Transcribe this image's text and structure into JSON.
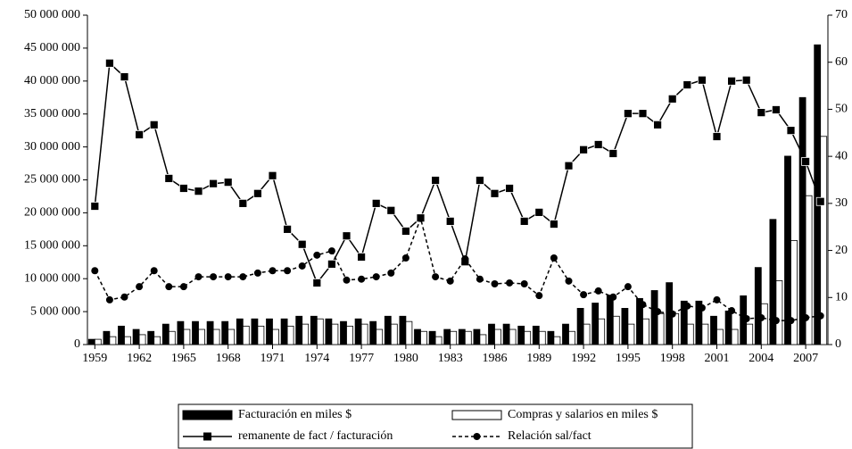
{
  "chart_data": {
    "type": "bar",
    "categories": [
      "1959",
      null,
      null,
      "1962",
      null,
      null,
      "1965",
      null,
      null,
      "1968",
      null,
      null,
      "1971",
      null,
      null,
      "1974",
      null,
      null,
      "1977",
      null,
      null,
      "1980",
      null,
      null,
      "1983",
      null,
      null,
      "1986",
      null,
      null,
      "1989",
      null,
      null,
      "1992",
      null,
      null,
      "1995",
      null,
      null,
      "1998",
      null,
      null,
      "2001",
      null,
      null,
      "2004",
      null,
      null,
      "2007",
      null
    ],
    "series": [
      {
        "name": "Facturación en miles $",
        "type": "bar",
        "color": "#000000",
        "values": [
          800000,
          2000000,
          2800000,
          2300000,
          2000000,
          3100000,
          3500000,
          3500000,
          3500000,
          3500000,
          3900000,
          3900000,
          3900000,
          3900000,
          4300000,
          4300000,
          3900000,
          3500000,
          3900000,
          3500000,
          4300000,
          4300000,
          2300000,
          2000000,
          2300000,
          2300000,
          2300000,
          3100000,
          3100000,
          2800000,
          2800000,
          2000000,
          3100000,
          5500000,
          6300000,
          7500000,
          5500000,
          7000000,
          8200000,
          9400000,
          6600000,
          6600000,
          4300000,
          5100000,
          7400000,
          11700000,
          19000000,
          28600000,
          37500000,
          45500000
        ]
      },
      {
        "name": "Compras y salarios en miles $",
        "type": "bar",
        "color": "#ffffff",
        "values": [
          800000,
          1200000,
          1200000,
          1500000,
          1200000,
          2000000,
          2300000,
          2300000,
          2300000,
          2300000,
          2800000,
          2800000,
          2300000,
          2800000,
          3100000,
          3900000,
          3100000,
          2800000,
          3100000,
          2300000,
          3100000,
          3500000,
          2000000,
          1200000,
          2000000,
          2000000,
          1500000,
          2300000,
          2300000,
          2000000,
          2000000,
          1200000,
          2000000,
          3100000,
          3900000,
          4300000,
          3100000,
          3900000,
          4700000,
          4700000,
          3100000,
          3100000,
          2300000,
          2300000,
          3100000,
          6200000,
          9700000,
          15800000,
          22600000,
          31600000
        ]
      },
      {
        "name": "remanente de fact / facturación",
        "type": "line",
        "axis": "y2",
        "color": "#000000",
        "marker": "square",
        "dash": false,
        "values": [
          29.4,
          59.8,
          56.9,
          44.6,
          46.7,
          35.3,
          33.2,
          32.6,
          34.2,
          34.5,
          30.0,
          32.1,
          35.9,
          24.5,
          21.3,
          13.1,
          17.1,
          23.1,
          18.6,
          30.0,
          28.5,
          24.1,
          26.9,
          34.9,
          26.2,
          17.6,
          34.9,
          32.1,
          33.2,
          26.2,
          28.1,
          25.6,
          38.0,
          41.4,
          42.5,
          40.6,
          49.1,
          49.1,
          46.7,
          52.2,
          55.2,
          56.2,
          44.2,
          56.0,
          56.2,
          49.3,
          49.9,
          45.5,
          38.9,
          30.4
        ]
      },
      {
        "name": "Relación sal/fact",
        "type": "line",
        "axis": "y2",
        "color": "#000000",
        "marker": "circle",
        "dash": true,
        "values": [
          15.7,
          9.5,
          10.1,
          12.3,
          15.7,
          12.3,
          12.3,
          14.4,
          14.4,
          14.4,
          14.4,
          15.2,
          15.7,
          15.7,
          16.7,
          19.0,
          19.9,
          13.7,
          13.9,
          14.4,
          15.2,
          18.4,
          26.8,
          14.4,
          13.5,
          18.2,
          13.9,
          12.9,
          13.1,
          12.9,
          10.4,
          18.4,
          13.5,
          10.6,
          11.4,
          10.1,
          12.3,
          8.5,
          7.0,
          6.5,
          8.2,
          7.8,
          9.5,
          7.2,
          5.5,
          5.7,
          5.1,
          5.1,
          5.7,
          6.1
        ]
      }
    ],
    "ylim": [
      0,
      50000000
    ],
    "yticks": [
      0,
      {
        "value": 5000000,
        "label": "5 000 000"
      },
      {
        "value": 10000000,
        "label": "10 000 000"
      },
      {
        "value": 15000000,
        "label": "15 000 000"
      },
      {
        "value": 20000000,
        "label": "20 000 000"
      },
      {
        "value": 25000000,
        "label": "25 000 000"
      },
      {
        "value": 30000000,
        "label": "30 000 000"
      },
      {
        "value": 35000000,
        "label": "35 000 000"
      },
      {
        "value": 40000000,
        "label": "40 000 000"
      },
      {
        "value": 45000000,
        "label": "45 000 000"
      },
      {
        "value": 50000000,
        "label": "50 000 000"
      }
    ],
    "y2lim": [
      0,
      70
    ],
    "y2ticks": [
      0,
      10,
      20,
      30,
      40,
      50,
      60,
      70
    ],
    "grid": false,
    "legend": "bottom"
  }
}
